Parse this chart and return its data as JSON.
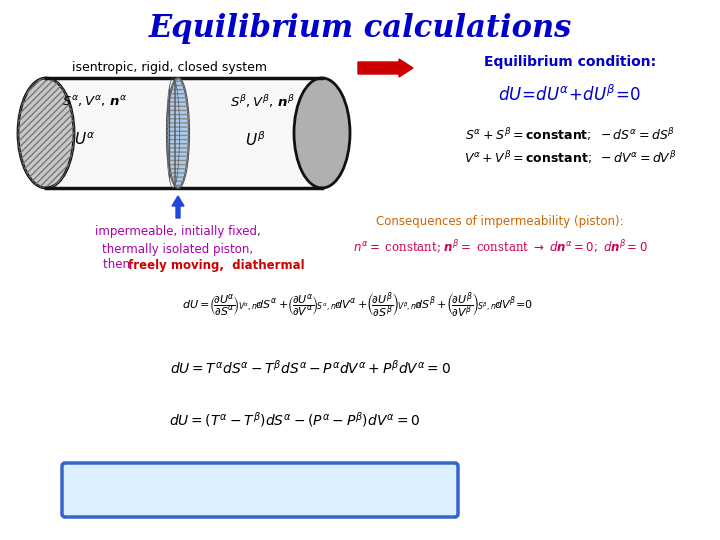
{
  "title": "Equilibrium calculations",
  "title_color": "#0000CC",
  "title_fontsize": 22,
  "background_color": "#FFFFFF",
  "subtitle": "isentropic, rigid, closed system",
  "arrow_label": "Equilibrium condition:",
  "bg_color": "#FFFFFF"
}
